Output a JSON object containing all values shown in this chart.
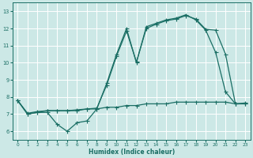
{
  "xlabel": "Humidex (Indice chaleur)",
  "bg_color": "#cce8e6",
  "grid_color": "#ffffff",
  "line_color": "#1a6e64",
  "xlim": [
    -0.5,
    23.5
  ],
  "ylim": [
    5.5,
    13.5
  ],
  "xticks": [
    0,
    1,
    2,
    3,
    4,
    5,
    6,
    7,
    8,
    9,
    10,
    11,
    12,
    13,
    14,
    15,
    16,
    17,
    18,
    19,
    20,
    21,
    22,
    23
  ],
  "yticks": [
    6,
    7,
    8,
    9,
    10,
    11,
    12,
    13
  ],
  "line1_x": [
    0,
    1,
    2,
    3,
    4,
    5,
    6,
    7,
    8,
    9,
    10,
    11,
    12,
    13,
    14,
    15,
    16,
    17,
    18,
    19,
    20,
    21,
    22,
    23
  ],
  "line1_y": [
    7.8,
    7.0,
    7.1,
    7.1,
    6.4,
    6.0,
    6.5,
    6.6,
    7.3,
    8.8,
    10.5,
    12.0,
    10.0,
    12.1,
    12.3,
    12.5,
    12.6,
    12.8,
    12.5,
    11.9,
    10.6,
    8.3,
    7.6,
    7.6
  ],
  "line2_x": [
    0,
    1,
    2,
    3,
    4,
    5,
    6,
    7,
    8,
    9,
    10,
    11,
    12,
    13,
    14,
    15,
    16,
    17,
    18,
    19,
    20,
    21,
    22,
    23
  ],
  "line2_y": [
    7.8,
    7.05,
    7.15,
    7.2,
    7.2,
    7.2,
    7.25,
    7.3,
    7.35,
    8.7,
    10.4,
    11.85,
    10.05,
    12.0,
    12.25,
    12.45,
    12.55,
    12.75,
    12.55,
    11.95,
    11.9,
    10.5,
    7.6,
    7.65
  ],
  "line3_x": [
    0,
    1,
    2,
    3,
    4,
    5,
    6,
    7,
    8,
    9,
    10,
    11,
    12,
    13,
    14,
    15,
    16,
    17,
    18,
    19,
    20,
    21,
    22,
    23
  ],
  "line3_y": [
    7.8,
    7.0,
    7.1,
    7.2,
    7.2,
    7.2,
    7.2,
    7.3,
    7.3,
    7.4,
    7.4,
    7.5,
    7.5,
    7.6,
    7.6,
    7.6,
    7.7,
    7.7,
    7.7,
    7.7,
    7.7,
    7.7,
    7.6,
    7.6
  ]
}
